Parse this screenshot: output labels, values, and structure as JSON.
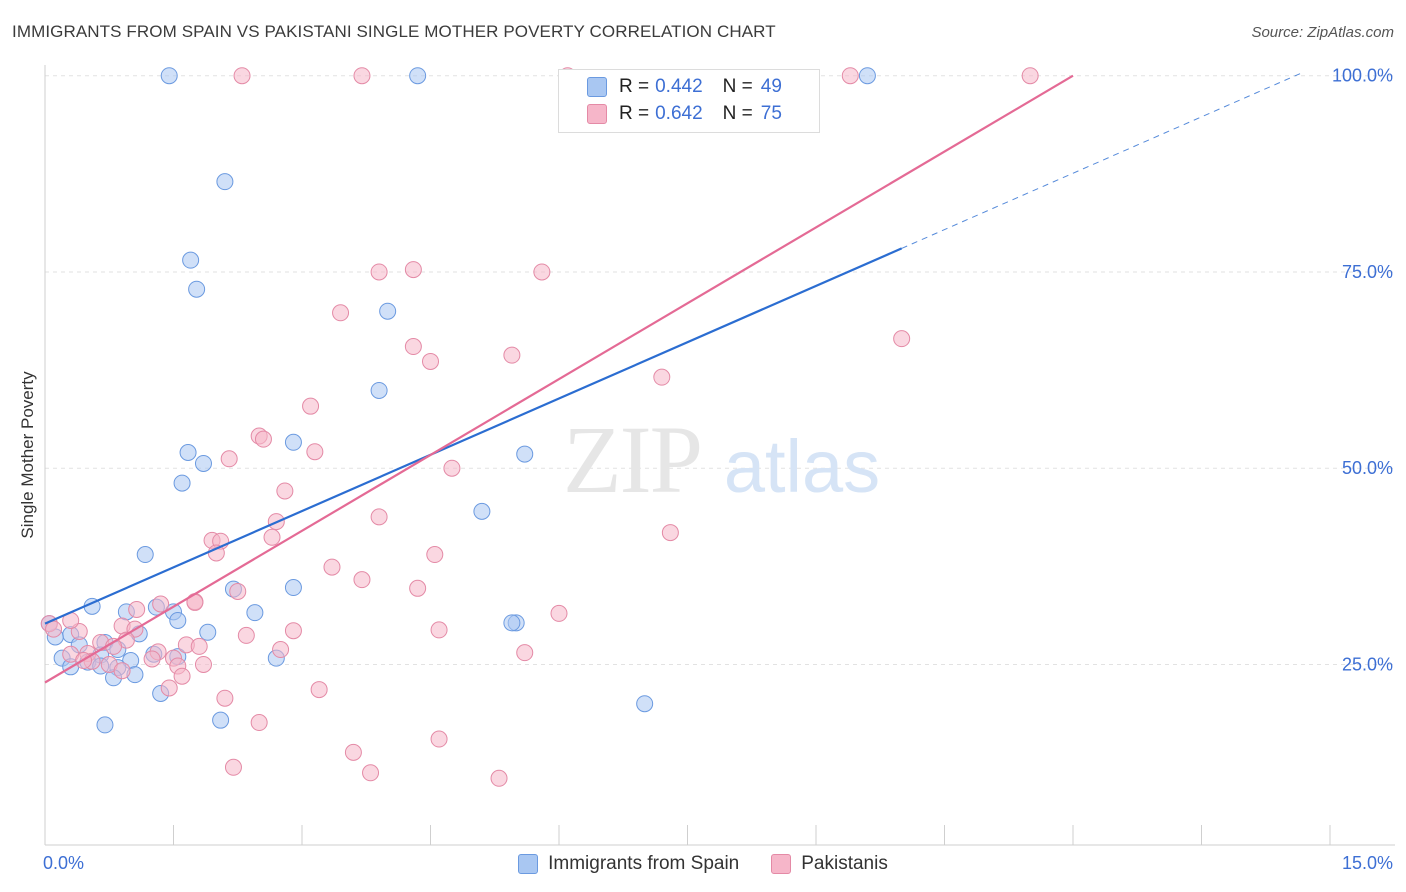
{
  "header": {
    "title": "IMMIGRANTS FROM SPAIN VS PAKISTANI SINGLE MOTHER POVERTY CORRELATION CHART",
    "source": "Source: ZipAtlas.com"
  },
  "watermark": {
    "zip": "ZIP",
    "atlas": "atlas"
  },
  "legend": {
    "rows": [
      {
        "r_label": "R =",
        "r_value": "0.442",
        "n_label": "N =",
        "n_value": "49",
        "color": "#a9c7f2"
      },
      {
        "r_label": "R =",
        "r_value": "0.642",
        "n_label": "N =",
        "n_value": "75",
        "color": "#f6b6c9"
      }
    ]
  },
  "bottom_legend": {
    "items": [
      {
        "label": "Immigrants from Spain",
        "color": "#a9c7f2"
      },
      {
        "label": "Pakistanis",
        "color": "#f6b6c9"
      }
    ]
  },
  "chart_data": {
    "type": "scatter",
    "title": "IMMIGRANTS FROM SPAIN VS PAKISTANI SINGLE MOTHER POVERTY CORRELATION CHART",
    "xlabel": "",
    "ylabel": "Single Mother Poverty",
    "xlim": [
      0,
      15
    ],
    "ylim": [
      2,
      102
    ],
    "x_tick_labels": [
      {
        "value": 0,
        "label": "0.0%"
      },
      {
        "value": 15,
        "label": "15.0%"
      }
    ],
    "y_tick_labels": [
      {
        "value": 25,
        "label": "25.0%"
      },
      {
        "value": 50,
        "label": "50.0%"
      },
      {
        "value": 75,
        "label": "75.0%"
      },
      {
        "value": 100,
        "label": "100.0%"
      }
    ],
    "grid": true,
    "series": [
      {
        "name": "Immigrants from Spain",
        "color": "#a9c7f2",
        "edge": "#6b9ae0",
        "points": [
          [
            1.45,
            100
          ],
          [
            4.35,
            100
          ],
          [
            9.6,
            100
          ],
          [
            2.1,
            86.5
          ],
          [
            1.7,
            76.5
          ],
          [
            1.77,
            72.8
          ],
          [
            4.0,
            70
          ],
          [
            3.9,
            59.9
          ],
          [
            2.9,
            53.3
          ],
          [
            1.67,
            52
          ],
          [
            1.85,
            50.6
          ],
          [
            5.6,
            51.8
          ],
          [
            1.6,
            48.1
          ],
          [
            5.1,
            44.5
          ],
          [
            1.17,
            39
          ],
          [
            2.2,
            34.6
          ],
          [
            2.9,
            34.8
          ],
          [
            0.55,
            32.4
          ],
          [
            0.95,
            31.7
          ],
          [
            1.3,
            32.3
          ],
          [
            1.5,
            31.7
          ],
          [
            2.45,
            31.6
          ],
          [
            1.55,
            30.6
          ],
          [
            5.5,
            30.3
          ],
          [
            5.45,
            30.3
          ],
          [
            1.9,
            29.1
          ],
          [
            1.1,
            28.9
          ],
          [
            0.3,
            28.8
          ],
          [
            0.12,
            28.5
          ],
          [
            0.7,
            27.8
          ],
          [
            0.4,
            27.5
          ],
          [
            0.85,
            26.9
          ],
          [
            1.27,
            26.3
          ],
          [
            0.65,
            26.2
          ],
          [
            1.55,
            26.0
          ],
          [
            0.2,
            25.8
          ],
          [
            0.5,
            25.3
          ],
          [
            1.0,
            25.5
          ],
          [
            2.7,
            25.8
          ],
          [
            0.3,
            24.7
          ],
          [
            0.65,
            24.8
          ],
          [
            0.85,
            24.6
          ],
          [
            1.05,
            23.7
          ],
          [
            0.8,
            23.3
          ],
          [
            1.35,
            21.3
          ],
          [
            7.0,
            20.0
          ],
          [
            2.05,
            17.9
          ],
          [
            0.7,
            17.3
          ],
          [
            0.05,
            30.2
          ]
        ]
      },
      {
        "name": "Pakistanis",
        "color": "#f6b6c9",
        "edge": "#e48aa6",
        "points": [
          [
            2.3,
            100
          ],
          [
            3.7,
            100
          ],
          [
            6.1,
            100
          ],
          [
            9.4,
            100
          ],
          [
            11.5,
            100
          ],
          [
            3.9,
            75
          ],
          [
            4.3,
            75.3
          ],
          [
            5.8,
            75
          ],
          [
            3.45,
            69.8
          ],
          [
            10.0,
            66.5
          ],
          [
            4.3,
            65.5
          ],
          [
            4.5,
            63.6
          ],
          [
            5.45,
            64.4
          ],
          [
            7.2,
            61.6
          ],
          [
            3.1,
            57.9
          ],
          [
            2.5,
            54.1
          ],
          [
            2.55,
            53.7
          ],
          [
            3.15,
            52.1
          ],
          [
            2.15,
            51.2
          ],
          [
            4.75,
            50.0
          ],
          [
            2.8,
            47.1
          ],
          [
            3.9,
            43.8
          ],
          [
            2.7,
            43.2
          ],
          [
            7.3,
            41.8
          ],
          [
            2.65,
            41.2
          ],
          [
            1.95,
            40.8
          ],
          [
            2.05,
            40.7
          ],
          [
            2.0,
            39.2
          ],
          [
            4.55,
            39.0
          ],
          [
            3.35,
            37.4
          ],
          [
            3.7,
            35.8
          ],
          [
            2.25,
            34.3
          ],
          [
            1.75,
            33.0
          ],
          [
            1.35,
            32.7
          ],
          [
            1.07,
            32.0
          ],
          [
            0.9,
            29.9
          ],
          [
            2.9,
            29.3
          ],
          [
            4.6,
            29.4
          ],
          [
            0.4,
            29.2
          ],
          [
            1.05,
            29.5
          ],
          [
            2.35,
            28.7
          ],
          [
            0.95,
            28.1
          ],
          [
            0.65,
            27.8
          ],
          [
            0.8,
            27.3
          ],
          [
            1.65,
            27.5
          ],
          [
            1.8,
            27.3
          ],
          [
            2.75,
            26.9
          ],
          [
            1.32,
            26.6
          ],
          [
            0.5,
            26.4
          ],
          [
            0.3,
            26.3
          ],
          [
            1.25,
            25.7
          ],
          [
            1.5,
            25.8
          ],
          [
            0.55,
            25.4
          ],
          [
            0.75,
            25.0
          ],
          [
            1.55,
            24.8
          ],
          [
            1.85,
            25.0
          ],
          [
            0.9,
            24.2
          ],
          [
            1.6,
            23.5
          ],
          [
            1.45,
            22.0
          ],
          [
            3.2,
            21.8
          ],
          [
            2.1,
            20.7
          ],
          [
            2.5,
            17.6
          ],
          [
            4.6,
            15.5
          ],
          [
            3.6,
            13.8
          ],
          [
            2.2,
            11.9
          ],
          [
            3.8,
            11.2
          ],
          [
            5.3,
            10.5
          ],
          [
            0.05,
            30.2
          ],
          [
            0.1,
            29.5
          ],
          [
            1.75,
            32.9
          ],
          [
            4.35,
            34.7
          ],
          [
            0.45,
            25.5
          ],
          [
            0.3,
            30.6
          ],
          [
            6.0,
            31.5
          ],
          [
            5.6,
            26.5
          ]
        ]
      }
    ],
    "trendlines": [
      {
        "series": "Immigrants from Spain",
        "color": "#2b6dd1",
        "solid": [
          [
            0,
            30.2
          ],
          [
            10.0,
            78.0
          ]
        ],
        "dashed": [
          [
            10.0,
            78.0
          ],
          [
            14.7,
            100.5
          ]
        ]
      },
      {
        "series": "Pakistanis",
        "color": "#e46a95",
        "solid": [
          [
            0,
            22.7
          ],
          [
            12.0,
            100.0
          ]
        ]
      }
    ]
  }
}
